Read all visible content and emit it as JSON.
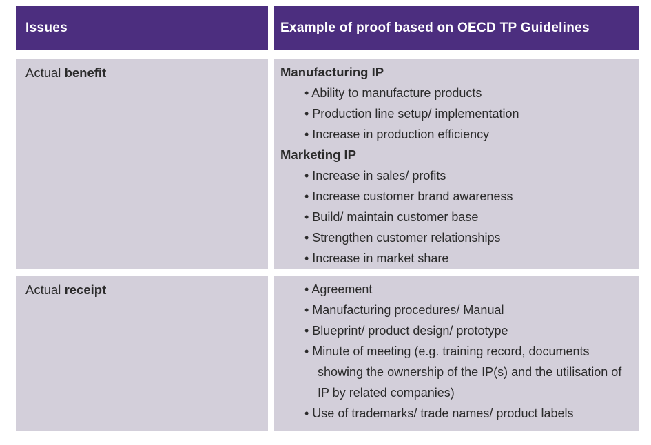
{
  "table": {
    "header": {
      "issues_label": "Issues",
      "example_label": "Example of proof based on OECD TP Guidelines"
    },
    "rows": [
      {
        "issue_prefix": "Actual ",
        "issue_bold": "benefit",
        "content": [
          {
            "type": "subhead",
            "text": "Manufacturing IP"
          },
          {
            "type": "bullet",
            "text": "Ability to manufacture products"
          },
          {
            "type": "bullet",
            "text": "Production line setup/ implementation"
          },
          {
            "type": "bullet",
            "text": "Increase in production efficiency"
          },
          {
            "type": "subhead",
            "text": "Marketing IP"
          },
          {
            "type": "bullet",
            "text": "Increase in sales/ profits"
          },
          {
            "type": "bullet",
            "text": "Increase customer brand awareness"
          },
          {
            "type": "bullet",
            "text": "Build/ maintain customer base"
          },
          {
            "type": "bullet",
            "text": "Strengthen customer relationships"
          },
          {
            "type": "bullet",
            "text": "Increase in market share"
          }
        ]
      },
      {
        "issue_prefix": "Actual ",
        "issue_bold": "receipt",
        "content": [
          {
            "type": "bullet",
            "text": "Agreement"
          },
          {
            "type": "bullet",
            "text": "Manufacturing procedures/ Manual"
          },
          {
            "type": "bullet",
            "text": "Blueprint/ product design/ prototype"
          },
          {
            "type": "bullet",
            "text": "Minute of meeting (e.g. training record, documents showing the ownership of the IP(s) and the utilisation of IP by related companies)"
          },
          {
            "type": "bullet",
            "text": "Use of trademarks/ trade names/ product labels"
          }
        ]
      }
    ],
    "bullet_char": "•",
    "colors": {
      "header_bg": "#4C2E7F",
      "header_text": "#FFFFFF",
      "row_bg": "#D3CFDA",
      "body_text": "#2B2B2B"
    }
  }
}
